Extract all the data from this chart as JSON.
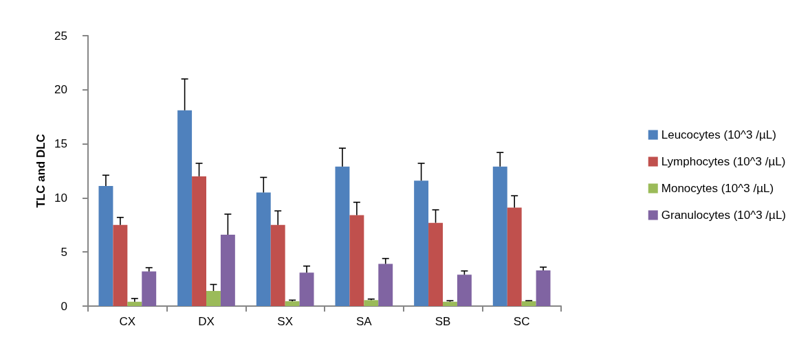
{
  "chart_data": {
    "type": "bar",
    "ylabel": "TLC and DLC",
    "categories": [
      "CX",
      "DX",
      "SX",
      "SA",
      "SB",
      "SC"
    ],
    "series": [
      {
        "name": "Leucocytes (10^3 /µL)",
        "color": "#4f81bd",
        "values": [
          11.1,
          18.1,
          10.5,
          12.9,
          11.6,
          12.9
        ],
        "errors": [
          [
            11.1,
            12.1
          ],
          [
            18.1,
            21.0
          ],
          [
            10.5,
            11.9
          ],
          [
            12.9,
            14.6
          ],
          [
            11.6,
            13.2
          ],
          [
            12.9,
            14.2
          ]
        ]
      },
      {
        "name": "Lymphocytes (10^3 /µL)",
        "color": "#c0504d",
        "values": [
          7.5,
          12.0,
          7.5,
          8.4,
          7.7,
          9.1
        ],
        "errors": [
          [
            7.5,
            8.2
          ],
          [
            12.0,
            13.2
          ],
          [
            7.5,
            8.8
          ],
          [
            8.4,
            9.6
          ],
          [
            7.7,
            8.9
          ],
          [
            9.1,
            10.2
          ]
        ]
      },
      {
        "name": "Monocytes (10^3 /µL)",
        "color": "#9bbb59",
        "values": [
          0.4,
          1.4,
          0.45,
          0.55,
          0.4,
          0.45
        ],
        "errors": [
          [
            0.4,
            0.7
          ],
          [
            1.4,
            2.0
          ],
          [
            0.45,
            0.55
          ],
          [
            0.55,
            0.65
          ],
          [
            0.4,
            0.5
          ],
          [
            0.45,
            0.5
          ]
        ]
      },
      {
        "name": "Granulocytes (10^3 /µL)",
        "color": "#8064a2",
        "values": [
          3.2,
          6.6,
          3.1,
          3.9,
          2.9,
          3.3
        ],
        "errors": [
          [
            3.2,
            3.55
          ],
          [
            6.6,
            8.5
          ],
          [
            3.1,
            3.7
          ],
          [
            3.9,
            4.4
          ],
          [
            2.9,
            3.25
          ],
          [
            3.3,
            3.6
          ]
        ]
      }
    ],
    "ylim": [
      0,
      25
    ],
    "yticks": [
      0,
      5,
      10,
      15,
      20,
      25
    ],
    "grid": false,
    "legend": "right"
  }
}
